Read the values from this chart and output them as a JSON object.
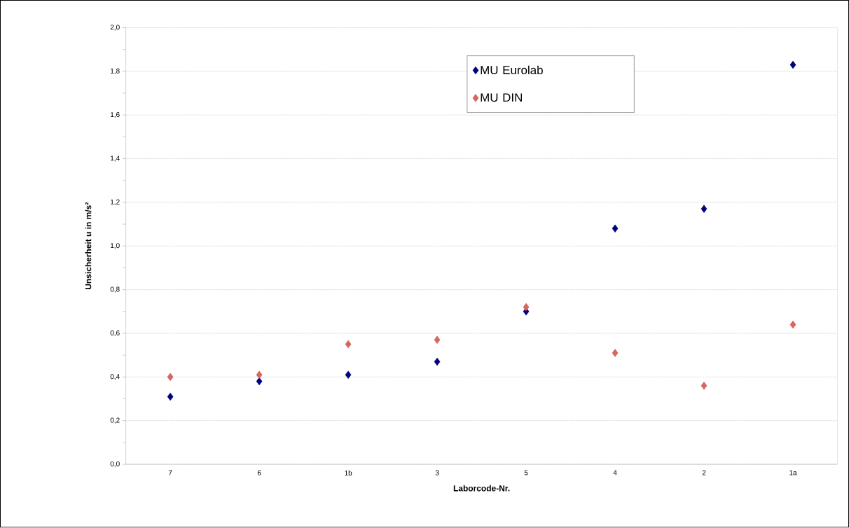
{
  "chart_data": {
    "type": "scatter",
    "xlabel": "Laborcode-Nr.",
    "ylabel": "Unsicherheit u in m/s²",
    "categories": [
      "7",
      "6",
      "1b",
      "3",
      "5",
      "4",
      "2",
      "1a"
    ],
    "series": [
      {
        "name": "MU Eurolab",
        "color": "#000080",
        "values": [
          0.31,
          0.38,
          0.41,
          0.47,
          0.7,
          1.08,
          1.17,
          1.83
        ]
      },
      {
        "name": "MU DIN",
        "color": "#d9675f",
        "values": [
          0.4,
          0.41,
          0.55,
          0.57,
          0.72,
          0.51,
          0.36,
          0.64
        ]
      }
    ],
    "ylim": [
      0,
      2.0
    ],
    "yticks": [
      {
        "value": 0,
        "label": "0,0"
      },
      {
        "value": 0.2,
        "label": "0,2"
      },
      {
        "value": 0.4,
        "label": "0,4"
      },
      {
        "value": 0.6,
        "label": "0,6"
      },
      {
        "value": 0.8,
        "label": "0,8"
      },
      {
        "value": 1.0,
        "label": "1,0"
      },
      {
        "value": 1.2,
        "label": "1,2"
      },
      {
        "value": 1.4,
        "label": "1,4"
      },
      {
        "value": 1.6,
        "label": "1,6"
      },
      {
        "value": 1.8,
        "label": "1,8"
      },
      {
        "value": 2.0,
        "label": "2,0"
      }
    ],
    "grid": "y",
    "legend": "top",
    "marker": "diamond"
  }
}
